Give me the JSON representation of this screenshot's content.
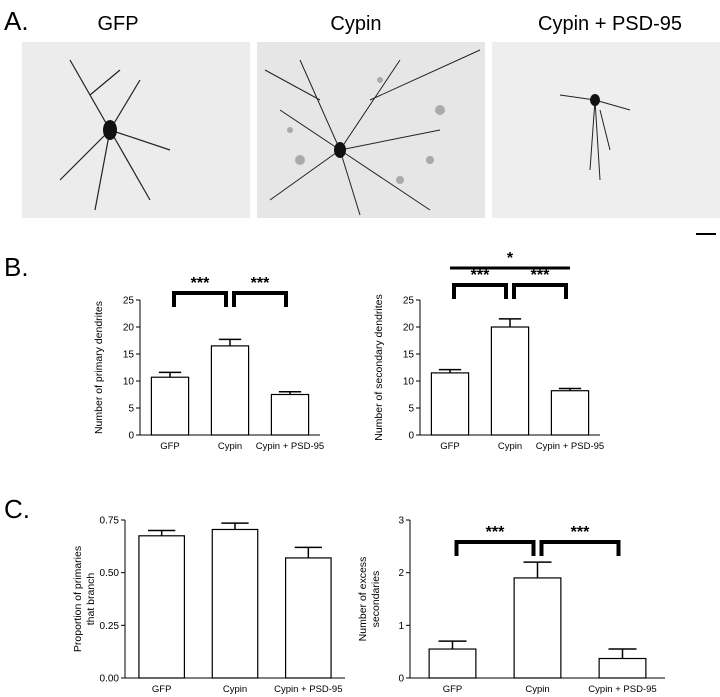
{
  "panels": {
    "a": "A.",
    "b": "B.",
    "c": "C."
  },
  "images": [
    {
      "title": "GFP"
    },
    {
      "title": "Cypin"
    },
    {
      "title": "Cypin + PSD-95"
    }
  ],
  "chart_data": [
    {
      "type": "bar",
      "ylabel": [
        "Number of primary dendrites"
      ],
      "categories": [
        "GFP",
        "Cypin",
        "Cypin + PSD-95"
      ],
      "values": [
        10.7,
        16.5,
        7.5
      ],
      "errors": [
        0.9,
        1.2,
        0.5
      ],
      "color": "#ffffff",
      "ylim": [
        0,
        25
      ],
      "yticks": [
        0,
        5,
        10,
        15,
        20,
        25
      ],
      "annotations": [
        {
          "text": "***",
          "between": [
            "GFP",
            "Cypin"
          ]
        },
        {
          "text": "***",
          "between": [
            "Cypin",
            "Cypin + PSD-95"
          ]
        }
      ]
    },
    {
      "type": "bar",
      "ylabel": [
        "Number of secondary dendrites"
      ],
      "categories": [
        "GFP",
        "Cypin",
        "Cypin + PSD-95"
      ],
      "values": [
        11.5,
        20,
        8.2
      ],
      "errors": [
        0.6,
        1.5,
        0.4
      ],
      "color": "#ffffff",
      "ylim": [
        0,
        25
      ],
      "yticks": [
        0,
        5,
        10,
        15,
        20,
        25
      ],
      "annotations": [
        {
          "text": "*",
          "between": [
            "GFP",
            "Cypin + PSD-95"
          ]
        },
        {
          "text": "***",
          "between": [
            "GFP",
            "Cypin"
          ]
        },
        {
          "text": "***",
          "between": [
            "Cypin",
            "Cypin + PSD-95"
          ]
        }
      ]
    },
    {
      "type": "bar",
      "ylabel": [
        "Proportion of primaries",
        "that branch"
      ],
      "categories": [
        "GFP",
        "Cypin",
        "Cypin + PSD-95"
      ],
      "values": [
        0.675,
        0.705,
        0.57
      ],
      "errors": [
        0.025,
        0.03,
        0.05
      ],
      "color": "#ffffff",
      "ylim": [
        0,
        0.75
      ],
      "yticks": [
        {
          "value": 0,
          "label": "0.00"
        },
        0.25,
        {
          "value": 0.5,
          "label": "0.50"
        },
        0.75
      ],
      "annotations": []
    },
    {
      "type": "bar",
      "ylabel": [
        "Number of excess",
        "secondaries"
      ],
      "categories": [
        "GFP",
        "Cypin",
        "Cypin + PSD-95"
      ],
      "values": [
        0.55,
        1.9,
        0.37
      ],
      "errors": [
        0.15,
        0.3,
        0.18
      ],
      "color": "#ffffff",
      "ylim": [
        0,
        3
      ],
      "yticks": [
        0,
        1,
        2,
        3
      ],
      "annotations": [
        {
          "text": "***",
          "between": [
            "GFP",
            "Cypin"
          ]
        },
        {
          "text": "***",
          "between": [
            "Cypin",
            "Cypin + PSD-95"
          ]
        }
      ]
    }
  ]
}
